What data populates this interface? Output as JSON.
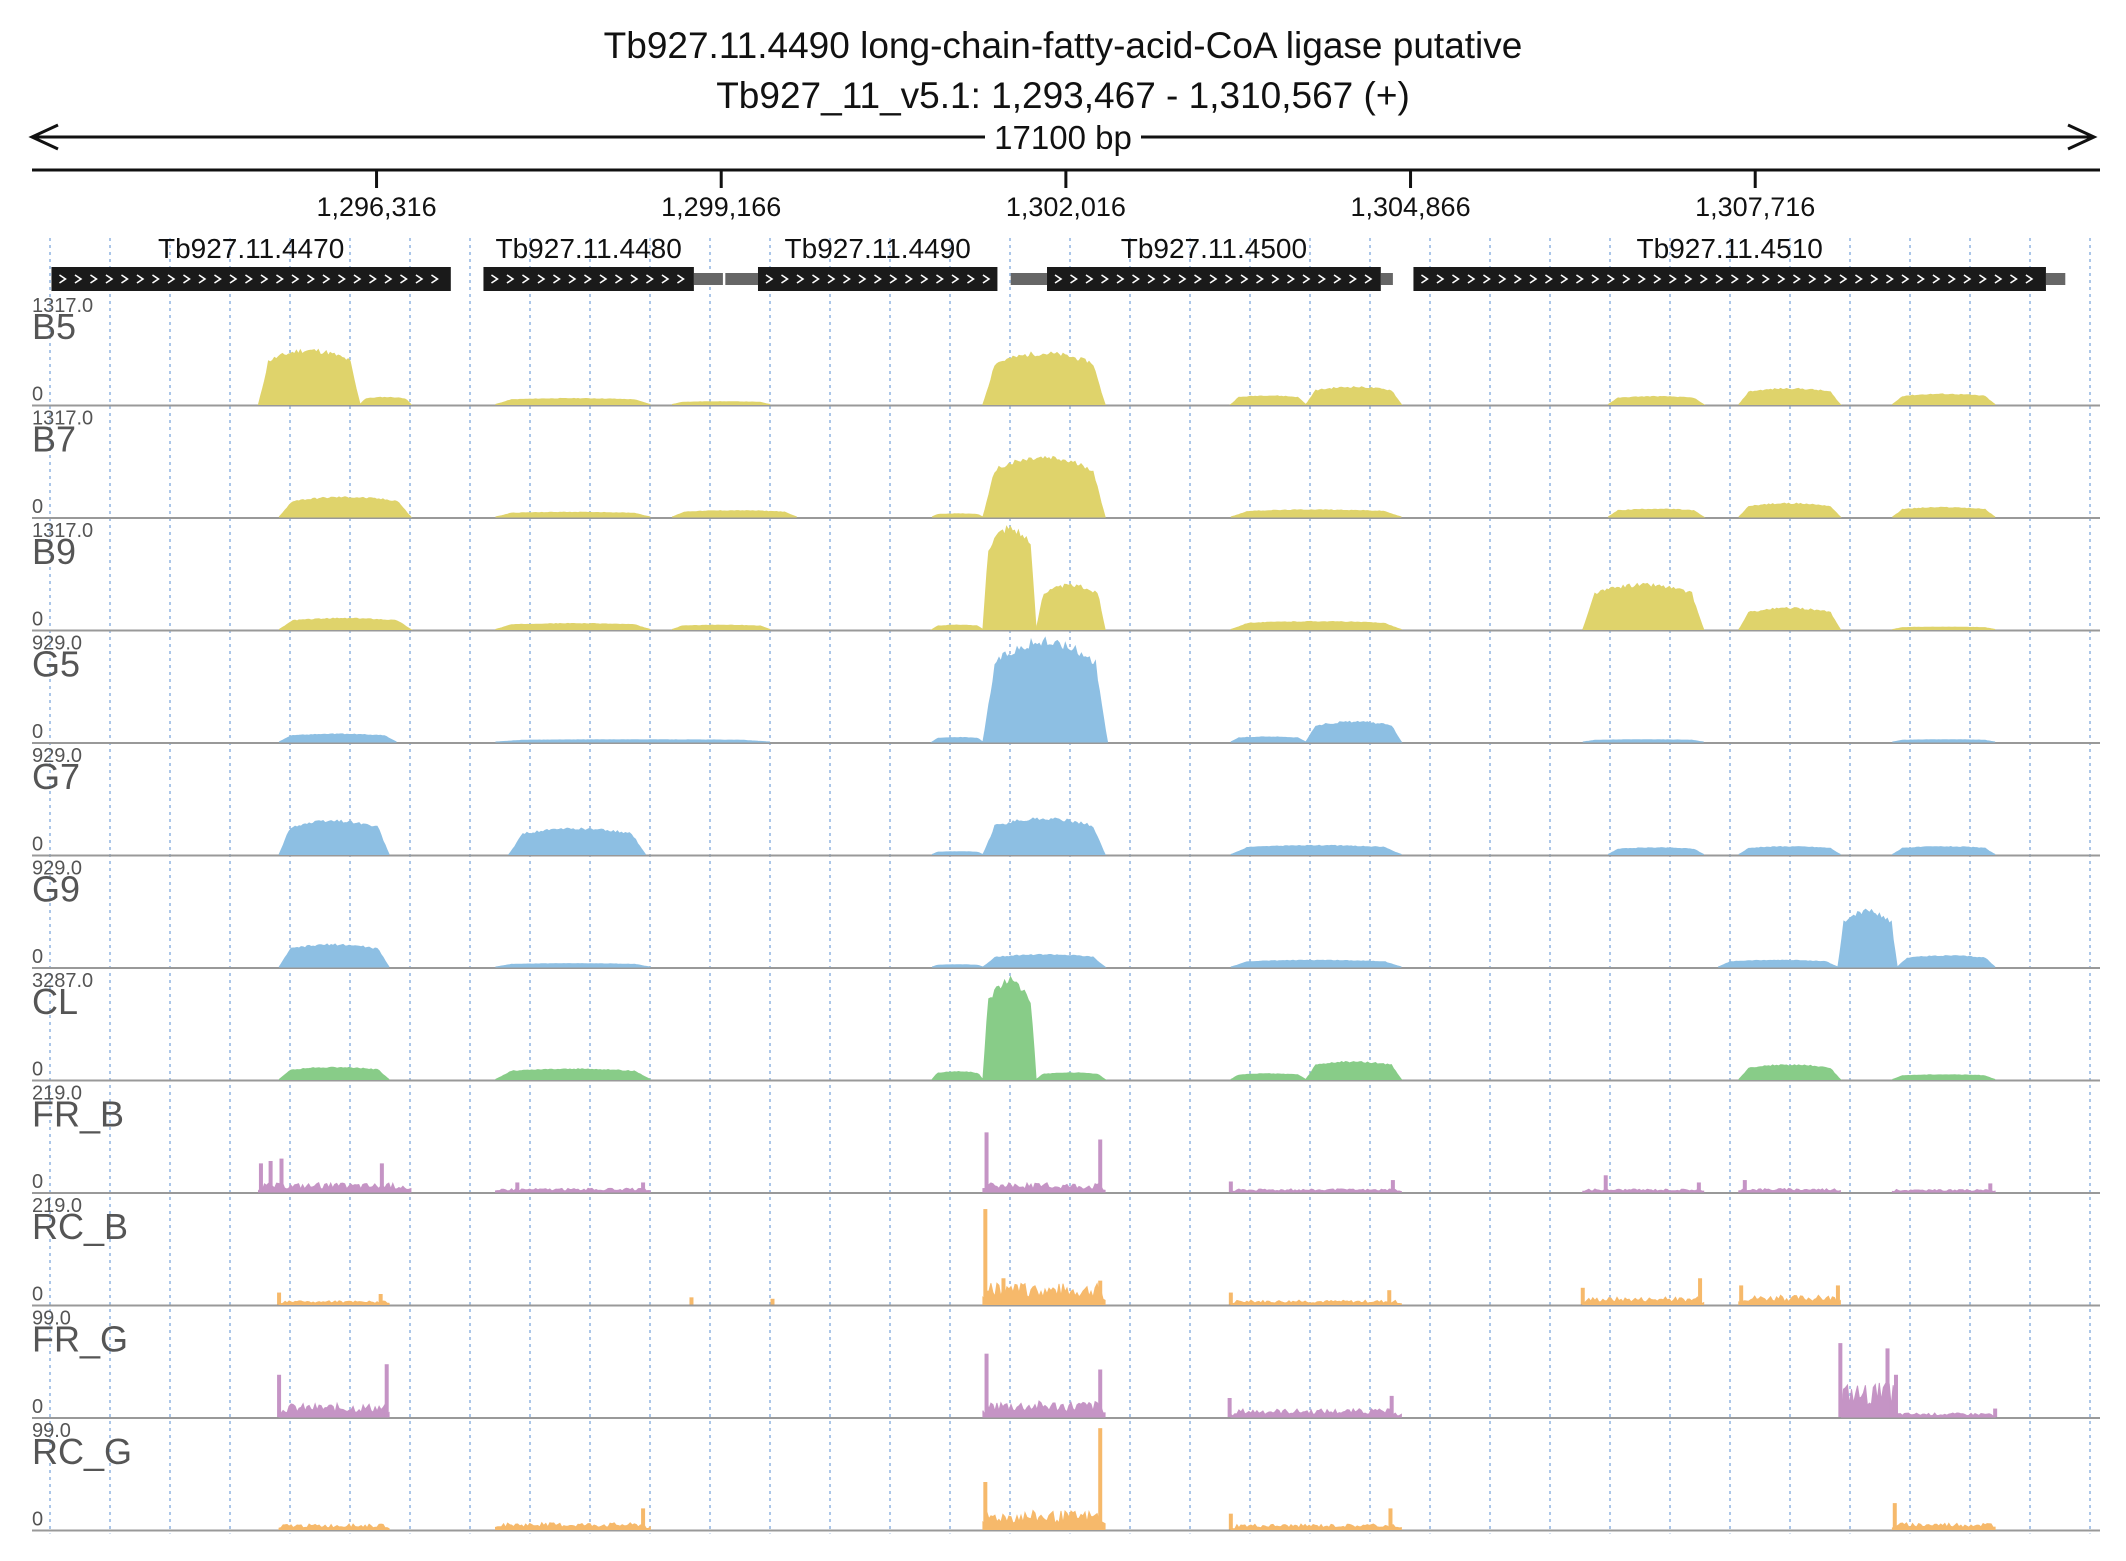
{
  "header": {
    "title": "Tb927.11.4490  long-chain-fatty-acid-CoA ligase  putative",
    "locus": "Tb927_11_v5.1: 1,293,467 - 1,310,567 (+)",
    "span_label": "17100 bp"
  },
  "chart_data": {
    "type": "area",
    "title": "Tb927.11.4490  long-chain-fatty-acid-CoA ligase  putative",
    "chromosome": "Tb927_11_v5.1",
    "xlim": [
      1293467,
      1310567
    ],
    "strand": "+",
    "axis_ticks": [
      {
        "value": 1296316,
        "label": "1,296,316"
      },
      {
        "value": 1299166,
        "label": "1,299,166"
      },
      {
        "value": 1302016,
        "label": "1,302,016"
      },
      {
        "value": 1304866,
        "label": "1,304,866"
      },
      {
        "value": 1307716,
        "label": "1,307,716"
      }
    ],
    "gridlines": "dotted-vertical",
    "genes": [
      {
        "name": "Tb927.11.4470",
        "start": 1293628,
        "end": 1296930,
        "utr_start": 1293628,
        "utr_end": 1296930
      },
      {
        "name": "Tb927.11.4480",
        "start": 1297200,
        "end": 1298940,
        "utr_start": 1297200,
        "utr_end": 1299180
      },
      {
        "name": "Tb927.11.4490",
        "start": 1299470,
        "end": 1301450,
        "utr_start": 1299200,
        "utr_end": 1301450
      },
      {
        "name": "Tb927.11.4500",
        "start": 1301860,
        "end": 1304620,
        "utr_start": 1301560,
        "utr_end": 1304720
      },
      {
        "name": "Tb927.11.4510",
        "start": 1304890,
        "end": 1310120,
        "utr_start": 1304890,
        "utr_end": 1310280
      }
    ],
    "tracks": [
      {
        "name": "B5",
        "ymax_label": "1317.0",
        "ymin_label": "0",
        "ymax": 1317,
        "color": "#dfd36b",
        "style": "area",
        "regions": [
          {
            "start": 1295340,
            "end": 1296180,
            "peak": 690
          },
          {
            "start": 1296180,
            "end": 1296600,
            "peak": 90
          },
          {
            "start": 1297300,
            "end": 1298580,
            "peak": 75
          },
          {
            "start": 1298760,
            "end": 1299570,
            "peak": 35
          },
          {
            "start": 1301330,
            "end": 1302340,
            "peak": 650
          },
          {
            "start": 1303380,
            "end": 1304000,
            "peak": 110
          },
          {
            "start": 1304000,
            "end": 1304790,
            "peak": 220
          },
          {
            "start": 1306500,
            "end": 1307290,
            "peak": 100
          },
          {
            "start": 1307580,
            "end": 1308420,
            "peak": 200
          },
          {
            "start": 1308850,
            "end": 1309700,
            "peak": 130
          }
        ]
      },
      {
        "name": "B7",
        "ymax_label": "1317.0",
        "ymin_label": "0",
        "ymax": 1317,
        "color": "#dfd36b",
        "style": "area",
        "regions": [
          {
            "start": 1295510,
            "end": 1296600,
            "peak": 250
          },
          {
            "start": 1297300,
            "end": 1298580,
            "peak": 60
          },
          {
            "start": 1298760,
            "end": 1299790,
            "peak": 80
          },
          {
            "start": 1300910,
            "end": 1301330,
            "peak": 40
          },
          {
            "start": 1301330,
            "end": 1302340,
            "peak": 750
          },
          {
            "start": 1303380,
            "end": 1304790,
            "peak": 90
          },
          {
            "start": 1306500,
            "end": 1307290,
            "peak": 100
          },
          {
            "start": 1307580,
            "end": 1308420,
            "peak": 170
          },
          {
            "start": 1308850,
            "end": 1309700,
            "peak": 120
          }
        ]
      },
      {
        "name": "B9",
        "ymax_label": "1317.0",
        "ymin_label": "0",
        "ymax": 1317,
        "color": "#dfd36b",
        "style": "area",
        "regions": [
          {
            "start": 1295510,
            "end": 1296600,
            "peak": 140
          },
          {
            "start": 1297300,
            "end": 1298580,
            "peak": 75
          },
          {
            "start": 1298760,
            "end": 1299570,
            "peak": 55
          },
          {
            "start": 1300910,
            "end": 1301330,
            "peak": 55
          },
          {
            "start": 1301330,
            "end": 1301770,
            "peak": 1300
          },
          {
            "start": 1301770,
            "end": 1302340,
            "peak": 560
          },
          {
            "start": 1303380,
            "end": 1304790,
            "peak": 100
          },
          {
            "start": 1306290,
            "end": 1307290,
            "peak": 570
          },
          {
            "start": 1307580,
            "end": 1308420,
            "peak": 270
          },
          {
            "start": 1308850,
            "end": 1309700,
            "peak": 30
          }
        ]
      },
      {
        "name": "G5",
        "ymax_label": "929.0",
        "ymin_label": "0",
        "ymax": 929,
        "color": "#8dbfe3",
        "style": "area",
        "regions": [
          {
            "start": 1295510,
            "end": 1296480,
            "peak": 70
          },
          {
            "start": 1297300,
            "end": 1299570,
            "peak": 20
          },
          {
            "start": 1300910,
            "end": 1301330,
            "peak": 40
          },
          {
            "start": 1301330,
            "end": 1302360,
            "peak": 900
          },
          {
            "start": 1303380,
            "end": 1304000,
            "peak": 45
          },
          {
            "start": 1304000,
            "end": 1304790,
            "peak": 180
          },
          {
            "start": 1306290,
            "end": 1307290,
            "peak": 20
          },
          {
            "start": 1308850,
            "end": 1309700,
            "peak": 20
          }
        ]
      },
      {
        "name": "G7",
        "ymax_label": "929.0",
        "ymin_label": "0",
        "ymax": 929,
        "color": "#8dbfe3",
        "style": "area",
        "regions": [
          {
            "start": 1295510,
            "end": 1296420,
            "peak": 300
          },
          {
            "start": 1297410,
            "end": 1298540,
            "peak": 230
          },
          {
            "start": 1300910,
            "end": 1301330,
            "peak": 25
          },
          {
            "start": 1301330,
            "end": 1302340,
            "peak": 320
          },
          {
            "start": 1303380,
            "end": 1304790,
            "peak": 80
          },
          {
            "start": 1306500,
            "end": 1307290,
            "peak": 60
          },
          {
            "start": 1307580,
            "end": 1308420,
            "peak": 70
          },
          {
            "start": 1308850,
            "end": 1309700,
            "peak": 70
          }
        ]
      },
      {
        "name": "G9",
        "ymax_label": "929.0",
        "ymin_label": "0",
        "ymax": 929,
        "color": "#8dbfe3",
        "style": "area",
        "regions": [
          {
            "start": 1295510,
            "end": 1296420,
            "peak": 200
          },
          {
            "start": 1297300,
            "end": 1298580,
            "peak": 30
          },
          {
            "start": 1300910,
            "end": 1301330,
            "peak": 20
          },
          {
            "start": 1301330,
            "end": 1302340,
            "peak": 110
          },
          {
            "start": 1303380,
            "end": 1304790,
            "peak": 60
          },
          {
            "start": 1307410,
            "end": 1308400,
            "peak": 60
          },
          {
            "start": 1308400,
            "end": 1308890,
            "peak": 500
          },
          {
            "start": 1308890,
            "end": 1309700,
            "peak": 100
          }
        ]
      },
      {
        "name": "CL",
        "ymax_label": "3287.0",
        "ymin_label": "0",
        "ymax": 3287,
        "color": "#88cc88",
        "style": "area",
        "regions": [
          {
            "start": 1295510,
            "end": 1296420,
            "peak": 380
          },
          {
            "start": 1297300,
            "end": 1298580,
            "peak": 330
          },
          {
            "start": 1300910,
            "end": 1301330,
            "peak": 250
          },
          {
            "start": 1301330,
            "end": 1301770,
            "peak": 3150
          },
          {
            "start": 1301770,
            "end": 1302340,
            "peak": 210
          },
          {
            "start": 1303380,
            "end": 1304000,
            "peak": 180
          },
          {
            "start": 1304000,
            "end": 1304790,
            "peak": 560
          },
          {
            "start": 1307580,
            "end": 1308420,
            "peak": 460
          },
          {
            "start": 1308850,
            "end": 1309700,
            "peak": 150
          }
        ]
      },
      {
        "name": "FR_B",
        "ymax_label": "219.0",
        "ymin_label": "0",
        "ymax": 219,
        "color": "#c594c5",
        "style": "spikes",
        "regions": [
          {
            "start": 1295340,
            "end": 1296600,
            "peak": 15
          },
          {
            "start": 1297300,
            "end": 1298580,
            "peak": 6
          },
          {
            "start": 1301330,
            "end": 1302340,
            "peak": 15
          },
          {
            "start": 1303380,
            "end": 1304790,
            "peak": 5
          },
          {
            "start": 1306290,
            "end": 1307290,
            "peak": 5
          },
          {
            "start": 1307580,
            "end": 1308420,
            "peak": 6
          },
          {
            "start": 1308850,
            "end": 1309700,
            "peak": 4
          }
        ],
        "spikes": [
          {
            "x": 1295360,
            "y": 60
          },
          {
            "x": 1295440,
            "y": 65
          },
          {
            "x": 1295530,
            "y": 70
          },
          {
            "x": 1296360,
            "y": 60
          },
          {
            "x": 1297480,
            "y": 20
          },
          {
            "x": 1298520,
            "y": 20
          },
          {
            "x": 1301360,
            "y": 125
          },
          {
            "x": 1302300,
            "y": 110
          },
          {
            "x": 1303380,
            "y": 22
          },
          {
            "x": 1304720,
            "y": 25
          },
          {
            "x": 1306480,
            "y": 35
          },
          {
            "x": 1307250,
            "y": 20
          },
          {
            "x": 1307630,
            "y": 25
          },
          {
            "x": 1309660,
            "y": 18
          }
        ]
      },
      {
        "name": "RC_B",
        "ymax_label": "219.0",
        "ymin_label": "0",
        "ymax": 219,
        "color": "#f6b96b",
        "style": "spikes",
        "regions": [
          {
            "start": 1295510,
            "end": 1296420,
            "peak": 6
          },
          {
            "start": 1301330,
            "end": 1302340,
            "peak": 35
          },
          {
            "start": 1303380,
            "end": 1304790,
            "peak": 7
          },
          {
            "start": 1306290,
            "end": 1307290,
            "peak": 12
          },
          {
            "start": 1307580,
            "end": 1308420,
            "peak": 15
          }
        ],
        "spikes": [
          {
            "x": 1295510,
            "y": 25
          },
          {
            "x": 1296350,
            "y": 22
          },
          {
            "x": 1298920,
            "y": 15
          },
          {
            "x": 1299590,
            "y": 12
          },
          {
            "x": 1301350,
            "y": 200
          },
          {
            "x": 1301500,
            "y": 55
          },
          {
            "x": 1302300,
            "y": 50
          },
          {
            "x": 1303380,
            "y": 25
          },
          {
            "x": 1304690,
            "y": 30
          },
          {
            "x": 1306290,
            "y": 35
          },
          {
            "x": 1307260,
            "y": 55
          },
          {
            "x": 1307600,
            "y": 40
          },
          {
            "x": 1308400,
            "y": 40
          }
        ]
      },
      {
        "name": "FR_G",
        "ymax_label": "99.0",
        "ymin_label": "0",
        "ymax": 99,
        "color": "#c594c5",
        "style": "spikes",
        "regions": [
          {
            "start": 1295510,
            "end": 1296420,
            "peak": 10
          },
          {
            "start": 1301330,
            "end": 1302340,
            "peak": 12
          },
          {
            "start": 1303380,
            "end": 1304790,
            "peak": 6
          },
          {
            "start": 1308430,
            "end": 1308890,
            "peak": 25
          },
          {
            "start": 1308850,
            "end": 1309700,
            "peak": 3
          }
        ],
        "spikes": [
          {
            "x": 1295510,
            "y": 40
          },
          {
            "x": 1296400,
            "y": 50
          },
          {
            "x": 1301360,
            "y": 60
          },
          {
            "x": 1302300,
            "y": 45
          },
          {
            "x": 1303370,
            "y": 18
          },
          {
            "x": 1304710,
            "y": 20
          },
          {
            "x": 1308420,
            "y": 70
          },
          {
            "x": 1308810,
            "y": 65
          },
          {
            "x": 1308880,
            "y": 40
          },
          {
            "x": 1309700,
            "y": 8
          }
        ]
      },
      {
        "name": "RC_G",
        "ymax_label": "99.0",
        "ymin_label": "0",
        "ymax": 99,
        "color": "#f6b96b",
        "style": "spikes",
        "regions": [
          {
            "start": 1295510,
            "end": 1296420,
            "peak": 4
          },
          {
            "start": 1297300,
            "end": 1298580,
            "peak": 5
          },
          {
            "start": 1301330,
            "end": 1302340,
            "peak": 14
          },
          {
            "start": 1303380,
            "end": 1304790,
            "peak": 4
          },
          {
            "start": 1308850,
            "end": 1309700,
            "peak": 5
          }
        ],
        "spikes": [
          {
            "x": 1298520,
            "y": 20
          },
          {
            "x": 1301350,
            "y": 45
          },
          {
            "x": 1302300,
            "y": 96
          },
          {
            "x": 1303380,
            "y": 15
          },
          {
            "x": 1304700,
            "y": 20
          },
          {
            "x": 1308870,
            "y": 25
          }
        ]
      }
    ]
  }
}
